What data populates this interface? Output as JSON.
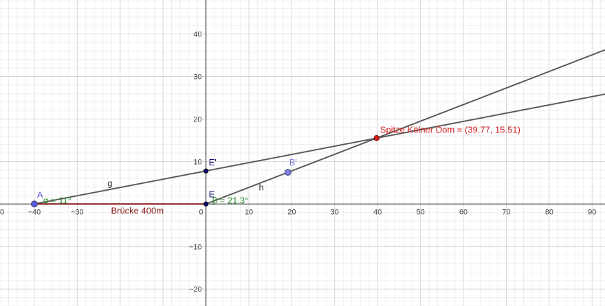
{
  "app": {
    "type": "geogebra-graphics-view"
  },
  "axes": {
    "x_range": [
      -48,
      93
    ],
    "y_range": [
      -24,
      48
    ],
    "x_ticks": [
      {
        "value": -40,
        "label": "−40"
      },
      {
        "value": -30,
        "label": "−30"
      },
      {
        "value": 10,
        "label": "10"
      },
      {
        "value": 20,
        "label": "20"
      },
      {
        "value": 30,
        "label": "30"
      },
      {
        "value": 40,
        "label": "40"
      },
      {
        "value": 50,
        "label": "50"
      },
      {
        "value": 60,
        "label": "60"
      },
      {
        "value": 70,
        "label": "70"
      },
      {
        "value": 80,
        "label": "80"
      },
      {
        "value": 90,
        "label": "90"
      }
    ],
    "x_tick_zero_label": "0",
    "x_tick_left_edge_label": "0",
    "y_ticks": [
      {
        "value": 40,
        "label": "40"
      },
      {
        "value": 30,
        "label": "30"
      },
      {
        "value": 20,
        "label": "20"
      },
      {
        "value": 10,
        "label": "10"
      },
      {
        "value": -10,
        "label": "−10"
      },
      {
        "value": -20,
        "label": "−20"
      }
    ],
    "minor_step": 2,
    "major_step": 10,
    "grid": true,
    "colors": {
      "minor_grid": "#eeeeee",
      "major_grid": "#d6d6d6",
      "axis": "#2a2a2a"
    }
  },
  "points": [
    {
      "id": "A",
      "label": "A",
      "x": -40,
      "y": 0,
      "color": "#5b5bd6",
      "style": "large"
    },
    {
      "id": "E",
      "label": "E",
      "x": 0,
      "y": 0,
      "color": "#0a0a6a",
      "style": "small"
    },
    {
      "id": "E_prime",
      "label": "E'",
      "x": 0,
      "y": 7.77,
      "color": "#0a0a6a",
      "style": "small"
    },
    {
      "id": "B_prime",
      "label": "B'",
      "x": 19.1,
      "y": 7.45,
      "color": "#7c7ce0",
      "style": "large"
    },
    {
      "id": "spitze",
      "label": "Spitze Kölner Dom = (39.77, 15.51)",
      "x": 39.77,
      "y": 15.51,
      "color": "#d42020",
      "style": "red"
    }
  ],
  "lines": [
    {
      "id": "g",
      "label": "g",
      "through": [
        -40,
        0
      ],
      "slope_deg": 11,
      "color": "#5a5a5a"
    },
    {
      "id": "h",
      "label": "h",
      "through": [
        0,
        0
      ],
      "slope_deg": 21.3,
      "color": "#5a5a5a"
    }
  ],
  "segment": {
    "id": "bruecke",
    "label": "Brücke 400m",
    "from": [
      -40,
      0
    ],
    "to": [
      0,
      0
    ],
    "color": "#8b1a1a"
  },
  "angles": [
    {
      "id": "alpha",
      "label": "α = 11°",
      "vertex": [
        -40,
        0
      ],
      "color": "#2e8b2e"
    },
    {
      "id": "beta",
      "label": "β = 21.3°",
      "vertex": [
        0,
        0
      ],
      "color": "#2e8b2e"
    }
  ]
}
